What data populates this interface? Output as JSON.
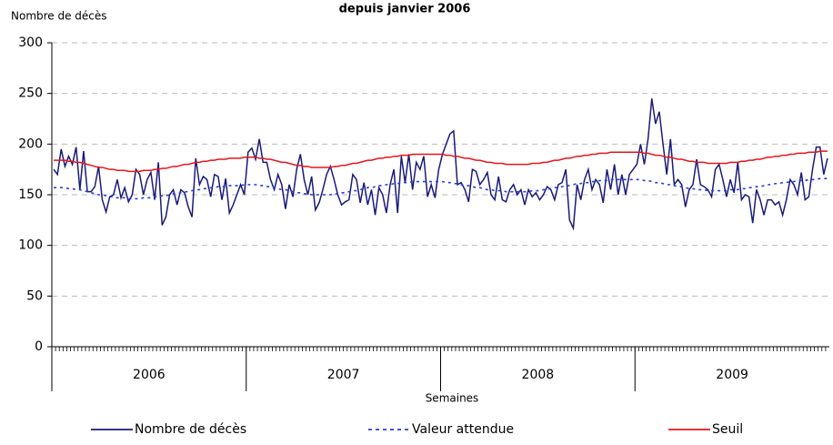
{
  "chart_data": {
    "type": "line",
    "title": "depuis janvier 2006",
    "y_label": "Nombre de décès",
    "x_label": "Semaines",
    "ylim": [
      0,
      300
    ],
    "yticks": [
      0,
      50,
      100,
      150,
      200,
      250,
      300
    ],
    "grid": true,
    "x_groups": [
      "2006",
      "2007",
      "2008",
      "2009"
    ],
    "categories": [
      null,
      null,
      null,
      null,
      null,
      null,
      null,
      null,
      null,
      null,
      null,
      null,
      null,
      null,
      null,
      null,
      null,
      null,
      null,
      null,
      null,
      null,
      null,
      null,
      null,
      null,
      null,
      null,
      null,
      null,
      null,
      null,
      null,
      null,
      null,
      null,
      null,
      null,
      null,
      null,
      null,
      null,
      null,
      null,
      null,
      null,
      null,
      null,
      null,
      null,
      null,
      null,
      null,
      null,
      null,
      null,
      null,
      null,
      null,
      null,
      null,
      null,
      null,
      null,
      null,
      null,
      null,
      null,
      null,
      null,
      null,
      null,
      null,
      null,
      null,
      null,
      null,
      null,
      null,
      null,
      null,
      null,
      null,
      null,
      null,
      null,
      null,
      null,
      null,
      null,
      null,
      null,
      null,
      null,
      null,
      null,
      null,
      null,
      null,
      null,
      null,
      null,
      null,
      null,
      null,
      null,
      null,
      null,
      null,
      null,
      null,
      null,
      null,
      null,
      null,
      null,
      null,
      null,
      null,
      null,
      null,
      null,
      null,
      null,
      null,
      null,
      null,
      null,
      null,
      null,
      null,
      null,
      null,
      null,
      null,
      null,
      null,
      null,
      null,
      null,
      null,
      null,
      null,
      null,
      null,
      null,
      null,
      null,
      null,
      null,
      null,
      null,
      null,
      null,
      null,
      null,
      null,
      null,
      null,
      null,
      null,
      null,
      null,
      null,
      null,
      null,
      null,
      null,
      null,
      null,
      null,
      null,
      null,
      null,
      null,
      null,
      null,
      null,
      null,
      null,
      null,
      null,
      null,
      null,
      null,
      null,
      null,
      null,
      null,
      null,
      null,
      null,
      null,
      null,
      null,
      null,
      null,
      null,
      null,
      null,
      null,
      null,
      null,
      null,
      null,
      null,
      null,
      null
    ],
    "series": [
      {
        "name": "Nombre de décès",
        "color": "#1a1a7a",
        "dash": false,
        "values": [
          175,
          170,
          195,
          178,
          188,
          180,
          197,
          155,
          193,
          153,
          153,
          158,
          178,
          145,
          133,
          148,
          150,
          165,
          147,
          157,
          143,
          150,
          175,
          170,
          150,
          165,
          172,
          145,
          182,
          120,
          128,
          150,
          155,
          140,
          155,
          152,
          138,
          128,
          186,
          160,
          168,
          165,
          148,
          170,
          168,
          145,
          166,
          132,
          140,
          150,
          160,
          150,
          192,
          196,
          185,
          205,
          182,
          182,
          165,
          155,
          170,
          160,
          136,
          160,
          148,
          175,
          190,
          165,
          150,
          168,
          135,
          142,
          155,
          170,
          178,
          165,
          150,
          140,
          143,
          145,
          170,
          165,
          142,
          162,
          140,
          155,
          130,
          157,
          150,
          132,
          160,
          175,
          132,
          188,
          162,
          190,
          155,
          182,
          175,
          188,
          148,
          160,
          147,
          175,
          190,
          200,
          210,
          213,
          160,
          162,
          155,
          143,
          175,
          173,
          160,
          165,
          172,
          150,
          145,
          168,
          145,
          143,
          155,
          160,
          150,
          155,
          140,
          155,
          148,
          152,
          145,
          150,
          158,
          155,
          145,
          160,
          162,
          175,
          125,
          117,
          160,
          145,
          165,
          175,
          155,
          165,
          160,
          142,
          175,
          155,
          180,
          150,
          170,
          150,
          170,
          175,
          180,
          200,
          180,
          205,
          245,
          220,
          232,
          200,
          170,
          205,
          160,
          165,
          160,
          138,
          155,
          160,
          185,
          160,
          158,
          155,
          148,
          175,
          180,
          165,
          148,
          165,
          152,
          182,
          145,
          150,
          148,
          122,
          155,
          145,
          130,
          145,
          145,
          140,
          143,
          130,
          145,
          165,
          160,
          150,
          172,
          145,
          148,
          175,
          197,
          197,
          170,
          186
        ]
      },
      {
        "name": "Valeur attendue",
        "color": "#2b3fd6",
        "dash": true,
        "values": [
          157,
          157,
          157,
          157,
          156,
          156,
          155,
          155,
          154,
          153,
          152,
          151,
          150,
          150,
          149,
          148,
          148,
          147,
          147,
          147,
          146,
          146,
          146,
          146,
          147,
          147,
          147,
          148,
          148,
          149,
          149,
          150,
          151,
          151,
          152,
          153,
          153,
          154,
          155,
          155,
          156,
          156,
          157,
          157,
          158,
          158,
          158,
          159,
          159,
          159,
          159,
          160,
          160,
          160,
          160,
          159,
          159,
          158,
          158,
          157,
          156,
          155,
          155,
          154,
          153,
          152,
          152,
          151,
          151,
          150,
          150,
          150,
          150,
          150,
          150,
          151,
          151,
          152,
          152,
          153,
          154,
          154,
          155,
          156,
          157,
          157,
          158,
          159,
          159,
          160,
          160,
          161,
          161,
          162,
          162,
          162,
          163,
          163,
          163,
          163,
          163,
          163,
          163,
          163,
          163,
          162,
          162,
          161,
          161,
          160,
          159,
          159,
          158,
          157,
          157,
          156,
          155,
          155,
          154,
          154,
          154,
          153,
          153,
          153,
          153,
          153,
          153,
          153,
          154,
          154,
          154,
          155,
          155,
          156,
          157,
          157,
          158,
          159,
          159,
          160,
          161,
          161,
          162,
          162,
          163,
          163,
          164,
          164,
          164,
          165,
          165,
          165,
          165,
          165,
          165,
          165,
          165,
          165,
          164,
          164,
          163,
          162,
          162,
          161,
          160,
          160,
          159,
          158,
          158,
          157,
          156,
          156,
          155,
          155,
          155,
          154,
          154,
          154,
          154,
          154,
          154,
          155,
          155,
          155,
          156,
          156,
          157,
          157,
          158,
          158,
          159,
          160,
          160,
          161,
          161,
          162,
          162,
          163,
          163,
          164,
          164,
          164,
          165,
          165,
          165,
          166,
          166,
          166
        ]
      },
      {
        "name": "Seuil",
        "color": "#e8141b",
        "dash": false,
        "values": [
          184,
          184,
          184,
          184,
          183,
          183,
          182,
          182,
          181,
          180,
          179,
          178,
          177,
          177,
          176,
          175,
          175,
          174,
          174,
          174,
          173,
          173,
          173,
          173,
          174,
          174,
          174,
          175,
          175,
          176,
          176,
          177,
          178,
          178,
          179,
          180,
          180,
          181,
          182,
          182,
          183,
          183,
          184,
          184,
          185,
          185,
          185,
          186,
          186,
          186,
          186,
          187,
          187,
          187,
          187,
          186,
          186,
          185,
          185,
          184,
          183,
          182,
          182,
          181,
          180,
          179,
          179,
          178,
          178,
          177,
          177,
          177,
          177,
          177,
          177,
          178,
          178,
          179,
          179,
          180,
          181,
          181,
          182,
          183,
          184,
          184,
          185,
          186,
          186,
          187,
          187,
          188,
          188,
          189,
          189,
          189,
          190,
          190,
          190,
          190,
          190,
          190,
          190,
          190,
          190,
          189,
          189,
          188,
          188,
          187,
          186,
          186,
          185,
          184,
          184,
          183,
          182,
          182,
          181,
          181,
          181,
          180,
          180,
          180,
          180,
          180,
          180,
          180,
          181,
          181,
          181,
          182,
          182,
          183,
          184,
          184,
          185,
          186,
          186,
          187,
          188,
          188,
          189,
          189,
          190,
          190,
          191,
          191,
          191,
          192,
          192,
          192,
          192,
          192,
          192,
          192,
          192,
          192,
          191,
          191,
          190,
          189,
          189,
          188,
          187,
          187,
          186,
          185,
          185,
          184,
          183,
          183,
          182,
          182,
          182,
          181,
          181,
          181,
          181,
          181,
          181,
          182,
          182,
          182,
          183,
          183,
          184,
          184,
          185,
          185,
          186,
          187,
          187,
          188,
          188,
          189,
          189,
          190,
          190,
          191,
          191,
          191,
          192,
          192,
          192,
          193,
          193,
          193
        ]
      }
    ]
  }
}
